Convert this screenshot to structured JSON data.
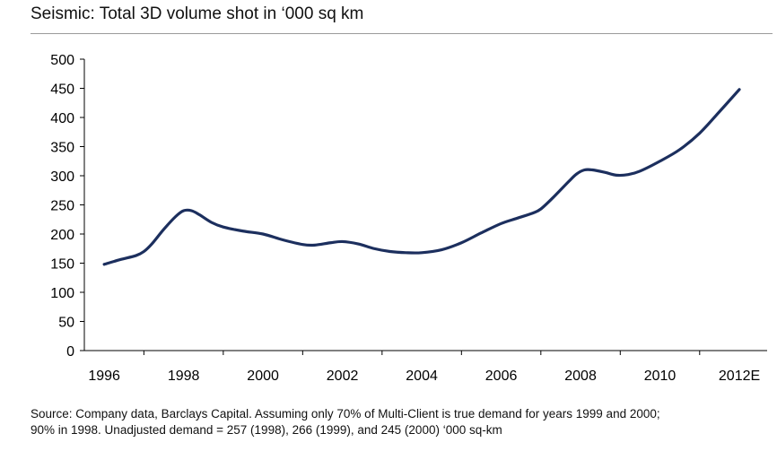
{
  "chart_data": {
    "type": "line",
    "title": "Seismic: Total 3D volume shot in ‘000 sq km",
    "xlabel": "",
    "ylabel": "",
    "ylim": [
      0,
      500
    ],
    "y_ticks": [
      0,
      50,
      100,
      150,
      200,
      250,
      300,
      350,
      400,
      450,
      500
    ],
    "x_ticks": [
      {
        "x": 1996,
        "label": "1996"
      },
      {
        "x": 1998,
        "label": "1998"
      },
      {
        "x": 2000,
        "label": "2000"
      },
      {
        "x": 2002,
        "label": "2002"
      },
      {
        "x": 2004,
        "label": "2004"
      },
      {
        "x": 2006,
        "label": "2006"
      },
      {
        "x": 2008,
        "label": "2008"
      },
      {
        "x": 2010,
        "label": "2010"
      },
      {
        "x": 2012,
        "label": "2012E"
      }
    ],
    "xlim": [
      1995.5,
      2012.7
    ],
    "grid": false,
    "series": [
      {
        "name": "Total 3D volume shot",
        "color": "#1c2f5e",
        "points": [
          [
            1996.0,
            148
          ],
          [
            1996.4,
            156
          ],
          [
            1996.8,
            163
          ],
          [
            1997.0,
            170
          ],
          [
            1997.2,
            183
          ],
          [
            1997.5,
            208
          ],
          [
            1997.8,
            230
          ],
          [
            1998.0,
            240
          ],
          [
            1998.2,
            240
          ],
          [
            1998.4,
            233
          ],
          [
            1998.7,
            220
          ],
          [
            1999.0,
            212
          ],
          [
            1999.5,
            205
          ],
          [
            2000.0,
            200
          ],
          [
            2000.5,
            190
          ],
          [
            2001.0,
            182
          ],
          [
            2001.3,
            181
          ],
          [
            2001.7,
            185
          ],
          [
            2002.0,
            187
          ],
          [
            2002.4,
            183
          ],
          [
            2002.8,
            175
          ],
          [
            2003.2,
            170
          ],
          [
            2003.6,
            168
          ],
          [
            2004.0,
            168
          ],
          [
            2004.5,
            173
          ],
          [
            2005.0,
            185
          ],
          [
            2005.5,
            202
          ],
          [
            2006.0,
            218
          ],
          [
            2006.4,
            227
          ],
          [
            2006.8,
            236
          ],
          [
            2007.0,
            243
          ],
          [
            2007.3,
            262
          ],
          [
            2007.7,
            290
          ],
          [
            2007.9,
            303
          ],
          [
            2008.1,
            310
          ],
          [
            2008.3,
            310
          ],
          [
            2008.6,
            306
          ],
          [
            2008.9,
            301
          ],
          [
            2009.2,
            302
          ],
          [
            2009.5,
            308
          ],
          [
            2010.0,
            325
          ],
          [
            2010.5,
            345
          ],
          [
            2011.0,
            373
          ],
          [
            2011.5,
            410
          ],
          [
            2012.0,
            448
          ]
        ]
      }
    ]
  },
  "footer": {
    "source_line1": "Source: Company data, Barclays Capital. Assuming only 70% of Multi-Client is true demand for years 1999 and 2000;",
    "source_line2": "90% in 1998. Unadjusted demand = 257 (1998), 266 (1999), and 245 (2000) ‘000 sq-km"
  }
}
